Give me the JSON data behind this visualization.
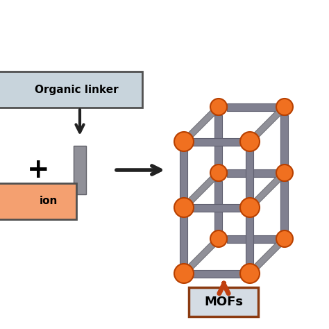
{
  "bg_color": "#ffffff",
  "orange_node_color": "#f07020",
  "node_edge_color": "#b84000",
  "linker_fill": "#808090",
  "linker_edge": "#606070",
  "box_linker_fill": "#c8d4dc",
  "box_linker_edge": "#505050",
  "box_mof_fill": "#d4dce4",
  "box_mof_edge": "#8b3a10",
  "box_ion_fill": "#f4a070",
  "box_ion_edge": "#505050",
  "arrow_color": "#222222",
  "mof_arrow_color": "#c04010",
  "title_linker": "Organic linker",
  "title_ion": "ion",
  "title_mof": "MOFs",
  "fig_w": 4.74,
  "fig_h": 4.74,
  "dpi": 100
}
